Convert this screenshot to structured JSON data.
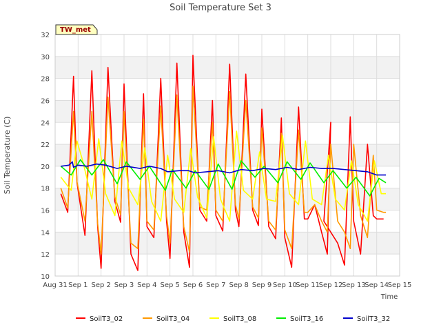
{
  "chart_data": {
    "type": "line",
    "title": "Soil Temperature Set 3",
    "xlabel": "Time",
    "ylabel": "Soil Temperature (C)",
    "annotation": "TW_met",
    "ylim": [
      10,
      32
    ],
    "y_ticks": [
      10,
      12,
      14,
      16,
      18,
      20,
      22,
      24,
      26,
      28,
      30,
      32
    ],
    "xlim": [
      0,
      15
    ],
    "x_tick_labels": [
      "Aug 31",
      "Sep 1",
      "Sep 2",
      "Sep 3",
      "Sep 4",
      "Sep 5",
      "Sep 6",
      "Sep 7",
      "Sep 8",
      "Sep 9",
      "Sep 10",
      "Sep 11",
      "Sep 12",
      "Sep 13",
      "Sep 14",
      "Sep 15"
    ],
    "grid": true,
    "legend_position": "bottom",
    "series": [
      {
        "name": "SoilT3_02",
        "color": "#ff0000",
        "x": [
          0.25,
          0.55,
          0.8,
          0.95,
          1.3,
          1.6,
          1.85,
          2.0,
          2.3,
          2.6,
          2.85,
          3.0,
          3.3,
          3.6,
          3.85,
          4.0,
          4.3,
          4.6,
          4.85,
          5.0,
          5.3,
          5.6,
          5.85,
          6.0,
          6.3,
          6.6,
          6.85,
          7.0,
          7.3,
          7.6,
          7.85,
          8.0,
          8.3,
          8.6,
          8.85,
          9.0,
          9.3,
          9.6,
          9.85,
          10.0,
          10.3,
          10.6,
          10.85,
          11.0,
          11.3,
          11.6,
          11.85,
          12.0,
          11.7,
          12.3,
          12.6,
          12.85,
          13.0,
          13.3,
          13.6,
          13.85,
          14.0,
          14.3
        ],
        "y": [
          17.5,
          15.8,
          28.2,
          18.5,
          13.7,
          28.7,
          14.5,
          10.7,
          29.0,
          16.8,
          14.9,
          27.5,
          12.0,
          10.5,
          26.6,
          14.5,
          13.5,
          28.0,
          15.0,
          11.6,
          29.4,
          14.0,
          10.8,
          30.1,
          16.0,
          15.0,
          26.0,
          15.5,
          14.1,
          29.3,
          16.0,
          14.5,
          28.4,
          16.0,
          14.6,
          25.2,
          14.5,
          13.4,
          24.4,
          13.5,
          10.8,
          25.4,
          15.2,
          15.2,
          16.5,
          14.0,
          12.0,
          24.0,
          15.0,
          13.0,
          11.0,
          24.5,
          15.0,
          12.0,
          22.0,
          15.5,
          15.2,
          15.2
        ]
      },
      {
        "name": "SoilT3_04",
        "color": "#ff9900",
        "x": [
          0.25,
          0.55,
          0.8,
          0.95,
          1.3,
          1.6,
          1.85,
          2.0,
          2.3,
          2.6,
          2.85,
          3.0,
          3.3,
          3.6,
          3.85,
          4.0,
          4.3,
          4.6,
          4.85,
          5.0,
          5.3,
          5.6,
          5.85,
          6.0,
          6.3,
          6.6,
          6.85,
          7.0,
          7.3,
          7.6,
          7.85,
          8.0,
          8.3,
          8.6,
          8.85,
          9.0,
          9.3,
          9.6,
          9.85,
          10.0,
          10.3,
          10.6,
          10.85,
          11.0,
          11.3,
          11.6,
          11.85,
          12.0,
          12.3,
          12.6,
          12.85,
          13.0,
          13.3,
          13.6,
          13.85,
          14.0,
          14.3,
          14.4
        ],
        "y": [
          18.0,
          16.2,
          25.0,
          18.6,
          15.0,
          25.0,
          14.8,
          12.0,
          26.3,
          17.2,
          15.6,
          25.0,
          13.0,
          12.5,
          24.3,
          15.0,
          14.2,
          25.5,
          15.5,
          13.0,
          26.5,
          14.5,
          12.2,
          27.3,
          16.3,
          16.0,
          24.0,
          16.0,
          15.0,
          26.8,
          16.5,
          15.2,
          26.0,
          16.3,
          15.3,
          23.5,
          15.0,
          14.2,
          23.0,
          14.2,
          12.5,
          23.3,
          15.8,
          15.8,
          16.5,
          15.0,
          14.0,
          22.0,
          15.0,
          14.0,
          12.5,
          22.0,
          15.5,
          13.5,
          21.0,
          16.0,
          15.8,
          15.8
        ]
      },
      {
        "name": "SoilT3_08",
        "color": "#ffff00",
        "x": [
          0.25,
          0.7,
          0.95,
          1.2,
          1.6,
          1.9,
          2.2,
          2.6,
          2.9,
          3.2,
          3.6,
          3.9,
          4.2,
          4.6,
          4.9,
          5.2,
          5.6,
          5.9,
          6.2,
          6.6,
          6.9,
          7.2,
          7.6,
          7.9,
          8.2,
          8.6,
          8.9,
          9.2,
          9.6,
          9.9,
          10.2,
          10.6,
          10.9,
          11.2,
          11.6,
          11.9,
          12.2,
          12.6,
          12.9,
          13.2,
          13.6,
          13.9,
          14.2,
          14.4
        ],
        "y": [
          19.0,
          17.8,
          22.3,
          20.5,
          17.0,
          22.5,
          17.5,
          15.5,
          22.3,
          18.0,
          16.5,
          21.7,
          16.8,
          15.0,
          21.0,
          17.0,
          15.8,
          21.6,
          17.2,
          15.3,
          22.7,
          17.0,
          15.0,
          23.2,
          17.8,
          17.0,
          21.3,
          17.0,
          16.8,
          22.8,
          17.5,
          16.5,
          22.3,
          17.0,
          16.5,
          21.0,
          17.0,
          16.0,
          20.5,
          16.5,
          15.0,
          20.5,
          17.5,
          17.5
        ]
      },
      {
        "name": "SoilT3_16",
        "color": "#00ee00",
        "x": [
          0.25,
          0.7,
          1.1,
          1.6,
          2.1,
          2.7,
          3.1,
          3.7,
          4.1,
          4.8,
          5.1,
          5.7,
          6.1,
          6.7,
          7.1,
          7.7,
          8.1,
          8.7,
          9.1,
          9.7,
          10.1,
          10.7,
          11.1,
          11.7,
          12.1,
          12.7,
          13.1,
          13.7,
          14.1,
          14.4
        ],
        "y": [
          20.0,
          19.2,
          20.6,
          19.2,
          20.6,
          18.4,
          20.4,
          18.8,
          20.0,
          17.8,
          19.7,
          18.0,
          19.6,
          17.9,
          20.2,
          17.9,
          20.5,
          19.0,
          20.0,
          18.5,
          20.4,
          18.8,
          20.3,
          18.5,
          19.6,
          18.0,
          19.0,
          17.3,
          18.9,
          18.5
        ]
      },
      {
        "name": "SoilT3_32",
        "color": "#0000cc",
        "x": [
          0.25,
          0.6,
          0.75,
          0.8,
          1.0,
          1.4,
          1.8,
          2.2,
          2.7,
          3.1,
          3.7,
          4.1,
          4.6,
          4.9,
          5.4,
          5.8,
          6.1,
          6.6,
          7.1,
          7.6,
          8.1,
          8.6,
          9.1,
          9.6,
          10.1,
          10.6,
          11.1,
          11.6,
          12.1,
          12.6,
          13.1,
          13.6,
          14.0,
          14.4
        ],
        "y": [
          20.0,
          20.1,
          20.4,
          19.9,
          20.1,
          20.0,
          20.2,
          20.1,
          19.8,
          20.0,
          19.8,
          20.0,
          19.8,
          19.5,
          19.6,
          19.6,
          19.4,
          19.5,
          19.6,
          19.4,
          19.7,
          19.6,
          19.8,
          19.7,
          19.9,
          19.7,
          19.9,
          19.8,
          19.8,
          19.7,
          19.6,
          19.5,
          19.2,
          19.2
        ]
      }
    ]
  }
}
